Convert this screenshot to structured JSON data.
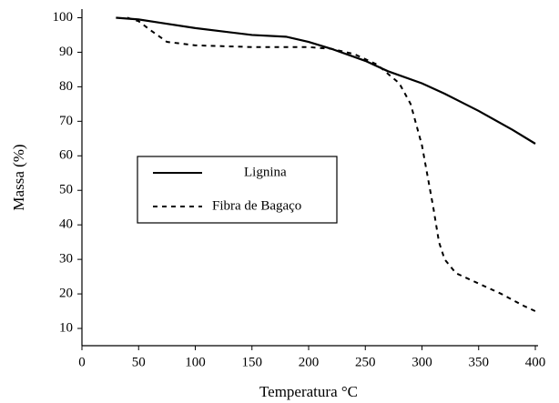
{
  "chart_data": {
    "type": "line",
    "xlabel": "Temperatura °C",
    "ylabel": "Massa (%)",
    "xlim": [
      0,
      400
    ],
    "xticks": [
      0,
      50,
      100,
      150,
      200,
      250,
      300,
      350,
      400
    ],
    "ylim": [
      5,
      102.5
    ],
    "yticks": [
      10,
      20,
      30,
      40,
      50,
      60,
      70,
      80,
      90,
      100
    ],
    "grid": false,
    "series": [
      {
        "name": "Lignina",
        "color": "#000000",
        "style": "solid",
        "x": [
          30,
          50,
          70,
          100,
          150,
          180,
          200,
          220,
          250,
          270,
          300,
          320,
          350,
          380,
          400
        ],
        "values": [
          100,
          99.5,
          98.5,
          97,
          95,
          94.5,
          93,
          91,
          87.5,
          84.5,
          81,
          78,
          73,
          67.5,
          63.5
        ]
      },
      {
        "name": "Fibra de Bagaço",
        "color": "#000000",
        "style": "dashed",
        "x": [
          40,
          50,
          60,
          75,
          100,
          150,
          200,
          220,
          240,
          260,
          280,
          290,
          300,
          310,
          315,
          320,
          330,
          350,
          370,
          390,
          400
        ],
        "values": [
          100,
          99,
          96.5,
          93,
          92,
          91.5,
          91.5,
          91,
          89.5,
          86.5,
          81,
          75,
          63,
          45,
          35,
          30,
          26,
          23,
          20,
          16.5,
          15
        ]
      }
    ]
  }
}
